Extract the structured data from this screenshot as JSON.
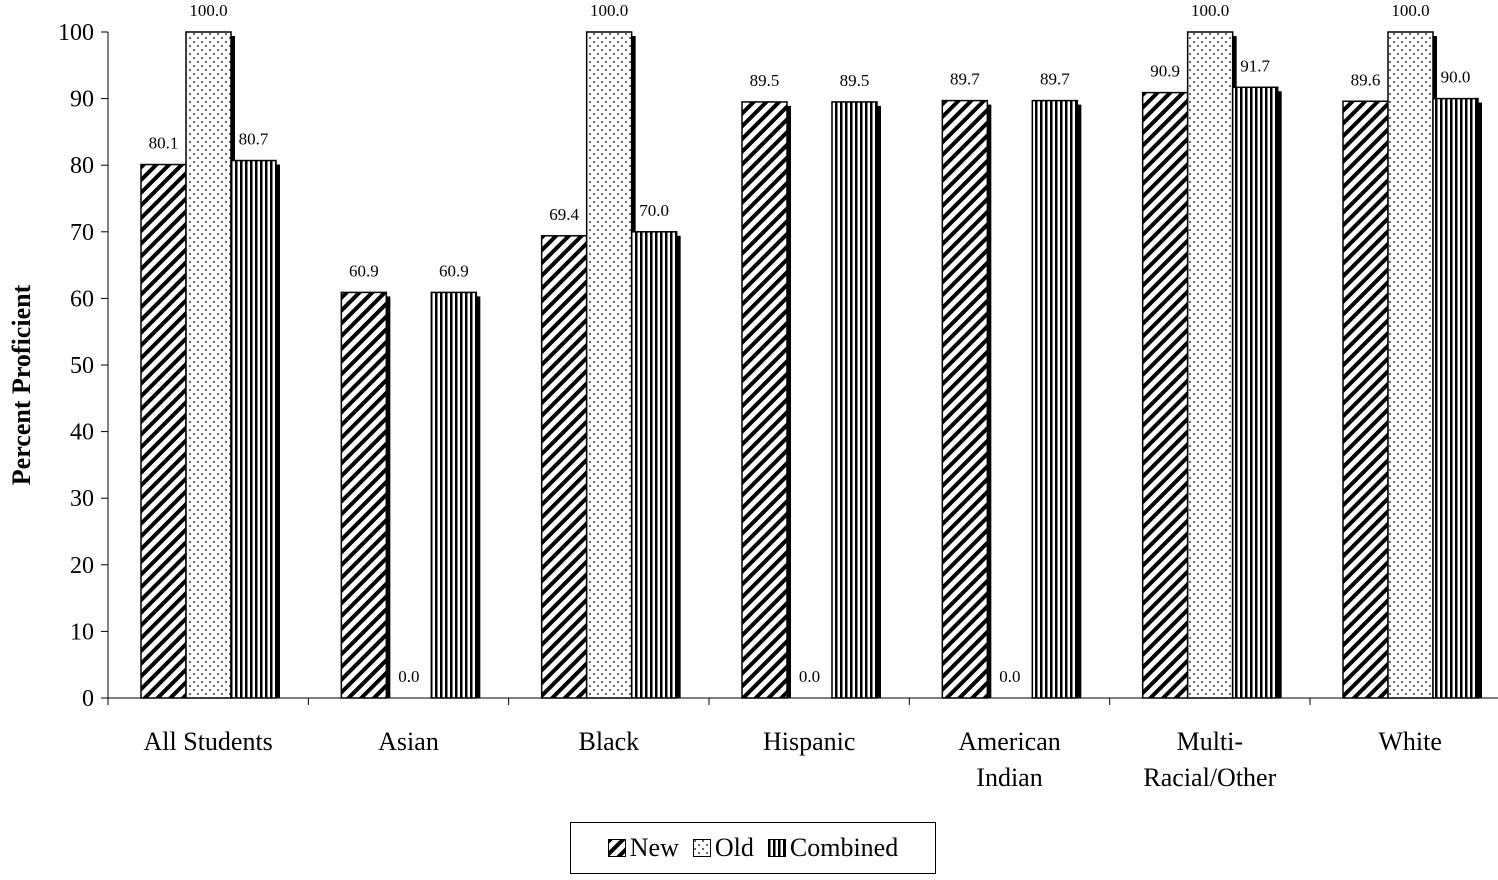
{
  "chart_data": {
    "type": "bar",
    "title": "",
    "xlabel": "",
    "ylabel": "Percent Proficient",
    "ylim": [
      0,
      100
    ],
    "yticks": [
      0,
      10,
      20,
      30,
      40,
      50,
      60,
      70,
      80,
      90,
      100
    ],
    "grid": false,
    "legend_position": "bottom-center",
    "categories": [
      [
        "All Students"
      ],
      [
        "Asian"
      ],
      [
        "Black"
      ],
      [
        "Hispanic"
      ],
      [
        "American",
        "Indian"
      ],
      [
        "Multi-",
        "Racial/Other"
      ],
      [
        "White"
      ]
    ],
    "series": [
      {
        "name": "New",
        "pattern": "diagonal-hatch",
        "values": [
          80.1,
          60.9,
          69.4,
          89.5,
          89.7,
          90.9,
          89.6
        ],
        "labels": [
          "80.1",
          "60.9",
          "69.4",
          "89.5",
          "89.7",
          "90.9",
          "89.6"
        ]
      },
      {
        "name": "Old",
        "pattern": "dots",
        "values": [
          100.0,
          0.0,
          100.0,
          0.0,
          0.0,
          100.0,
          100.0
        ],
        "labels": [
          "100.0",
          "0.0",
          "100.0",
          "0.0",
          "0.0",
          "100.0",
          "100.0"
        ]
      },
      {
        "name": "Combined",
        "pattern": "vertical-stripes",
        "values": [
          80.7,
          60.9,
          70.0,
          89.5,
          89.7,
          91.7,
          90.0
        ],
        "labels": [
          "80.7",
          "60.9",
          "70.0",
          "89.5",
          "89.7",
          "91.7",
          "90.0"
        ]
      }
    ],
    "colors": {
      "bar_fill": "#ffffff",
      "pattern": "#000000",
      "shadow": "#000000"
    }
  }
}
